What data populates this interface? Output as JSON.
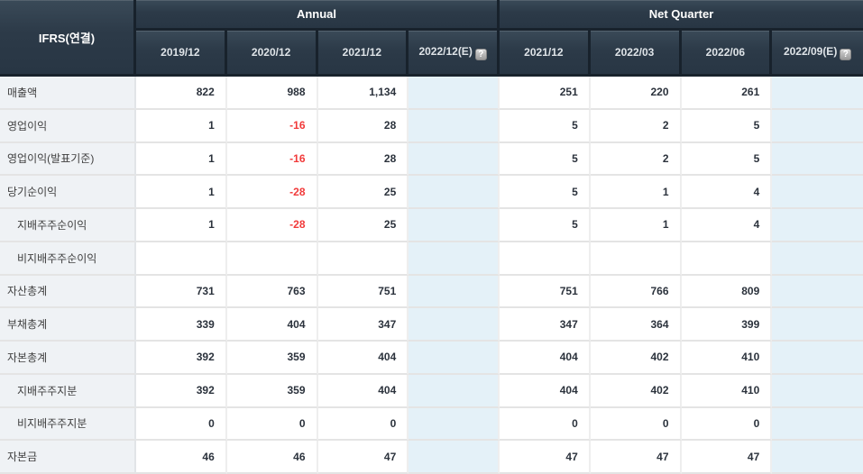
{
  "table": {
    "corner_label": "IFRS(연결)",
    "groups": [
      {
        "label": "Annual"
      },
      {
        "label": "Net Quarter"
      }
    ],
    "columns": [
      {
        "label": "2019/12",
        "estimate": false
      },
      {
        "label": "2020/12",
        "estimate": false
      },
      {
        "label": "2021/12",
        "estimate": false
      },
      {
        "label": "2022/12(E)",
        "estimate": true
      },
      {
        "label": "2021/12",
        "estimate": false
      },
      {
        "label": "2022/03",
        "estimate": false
      },
      {
        "label": "2022/06",
        "estimate": false
      },
      {
        "label": "2022/09(E)",
        "estimate": true
      }
    ],
    "help_icon": "?",
    "rows": [
      {
        "label": "매출액",
        "indent": false,
        "values": [
          "822",
          "988",
          "1,134",
          "",
          "251",
          "220",
          "261",
          ""
        ]
      },
      {
        "label": "영업이익",
        "indent": false,
        "values": [
          "1",
          "-16",
          "28",
          "",
          "5",
          "2",
          "5",
          ""
        ]
      },
      {
        "label": "영업이익(발표기준)",
        "indent": false,
        "values": [
          "1",
          "-16",
          "28",
          "",
          "5",
          "2",
          "5",
          ""
        ]
      },
      {
        "label": "당기순이익",
        "indent": false,
        "values": [
          "1",
          "-28",
          "25",
          "",
          "5",
          "1",
          "4",
          ""
        ]
      },
      {
        "label": "지배주주순이익",
        "indent": true,
        "values": [
          "1",
          "-28",
          "25",
          "",
          "5",
          "1",
          "4",
          ""
        ]
      },
      {
        "label": "비지배주주순이익",
        "indent": true,
        "values": [
          "",
          "",
          "",
          "",
          "",
          "",
          "",
          ""
        ]
      },
      {
        "label": "자산총계",
        "indent": false,
        "values": [
          "731",
          "763",
          "751",
          "",
          "751",
          "766",
          "809",
          ""
        ]
      },
      {
        "label": "부채총계",
        "indent": false,
        "values": [
          "339",
          "404",
          "347",
          "",
          "347",
          "364",
          "399",
          ""
        ]
      },
      {
        "label": "자본총계",
        "indent": false,
        "values": [
          "392",
          "359",
          "404",
          "",
          "404",
          "402",
          "410",
          ""
        ]
      },
      {
        "label": "지배주주지분",
        "indent": true,
        "values": [
          "392",
          "359",
          "404",
          "",
          "404",
          "402",
          "410",
          ""
        ]
      },
      {
        "label": "비지배주주지분",
        "indent": true,
        "values": [
          "0",
          "0",
          "0",
          "",
          "0",
          "0",
          "0",
          ""
        ]
      },
      {
        "label": "자본금",
        "indent": false,
        "values": [
          "46",
          "46",
          "47",
          "",
          "47",
          "47",
          "47",
          ""
        ]
      }
    ],
    "colors": {
      "header_bg": "#2d3b49",
      "header_border": "#18222c",
      "header_text": "#ffffff",
      "date_text": "#dfe4e8",
      "label_col_bg": "#eff2f5",
      "estimate_col_bg": "#e4f1f8",
      "number_text": "#2b323c",
      "negative_text": "#f13a3a",
      "grid_line": "#e4e4e4"
    }
  }
}
